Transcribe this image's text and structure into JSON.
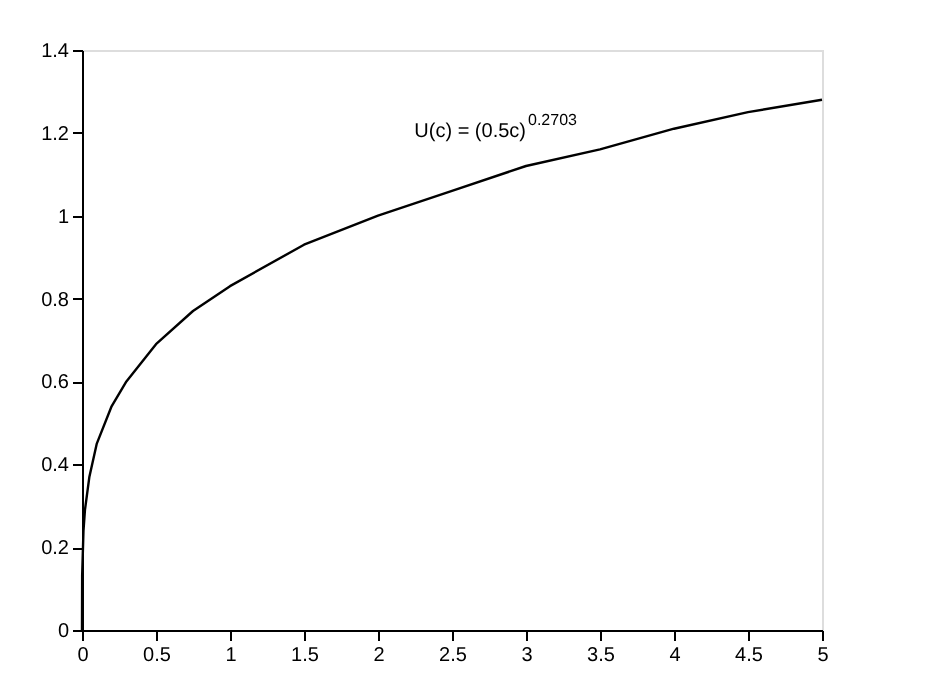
{
  "chart_data": {
    "type": "line",
    "x": [
      0,
      0.001,
      0.01,
      0.02,
      0.05,
      0.1,
      0.2,
      0.3,
      0.5,
      0.75,
      1,
      1.5,
      2,
      2.5,
      3,
      3.5,
      4,
      4.5,
      5
    ],
    "series": [
      {
        "color": "#000000",
        "values": [
          0,
          0.13,
          0.24,
          0.29,
          0.37,
          0.45,
          0.54,
          0.6,
          0.69,
          0.77,
          0.83,
          0.93,
          1.0,
          1.06,
          1.12,
          1.16,
          1.21,
          1.25,
          1.28
        ]
      }
    ],
    "xlim": [
      0,
      5
    ],
    "xticks": [
      0,
      0.5,
      1,
      1.5,
      2,
      2.5,
      3,
      3.5,
      4,
      4.5,
      5
    ],
    "ylim": [
      0,
      1.4
    ],
    "yticks": [
      0,
      0.2,
      0.4,
      0.6,
      0.8,
      1,
      1.2,
      1.4
    ],
    "annotations": [
      "U(c) = (0.5c)$^{0.2703}$"
    ],
    "grid": false
  }
}
